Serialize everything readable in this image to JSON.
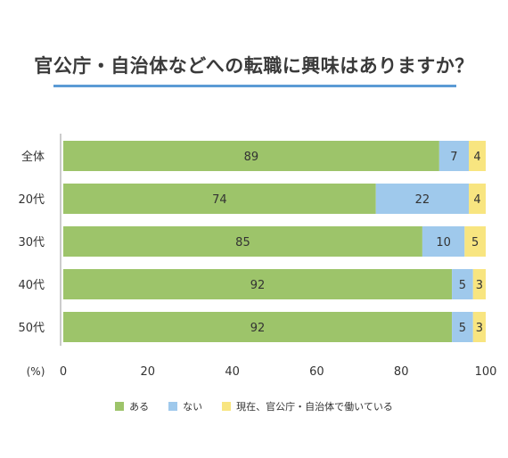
{
  "title": "官公庁・自治体などへの転職に興味はありますか？",
  "colors": {
    "accent_rule": "#5b9bd5"
  },
  "chart_data": {
    "type": "bar",
    "orientation": "horizontal",
    "stacked": true,
    "categories": [
      "全体",
      "20代",
      "30代",
      "40代",
      "50代"
    ],
    "series": [
      {
        "name": "ある",
        "color": "#9dc46a",
        "values": [
          89,
          74,
          85,
          92,
          92
        ]
      },
      {
        "name": "ない",
        "color": "#9fc9ec",
        "values": [
          7,
          22,
          10,
          5,
          5
        ]
      },
      {
        "name": "現在、官公庁・自治体で働いている",
        "color": "#f8e580",
        "values": [
          4,
          4,
          5,
          3,
          3
        ]
      }
    ],
    "xlim": [
      0,
      100
    ],
    "xticks": [
      "0",
      "20",
      "40",
      "60",
      "80",
      "100"
    ],
    "x_unit_label": "(%)",
    "grid": false,
    "legend_position": "bottom"
  }
}
